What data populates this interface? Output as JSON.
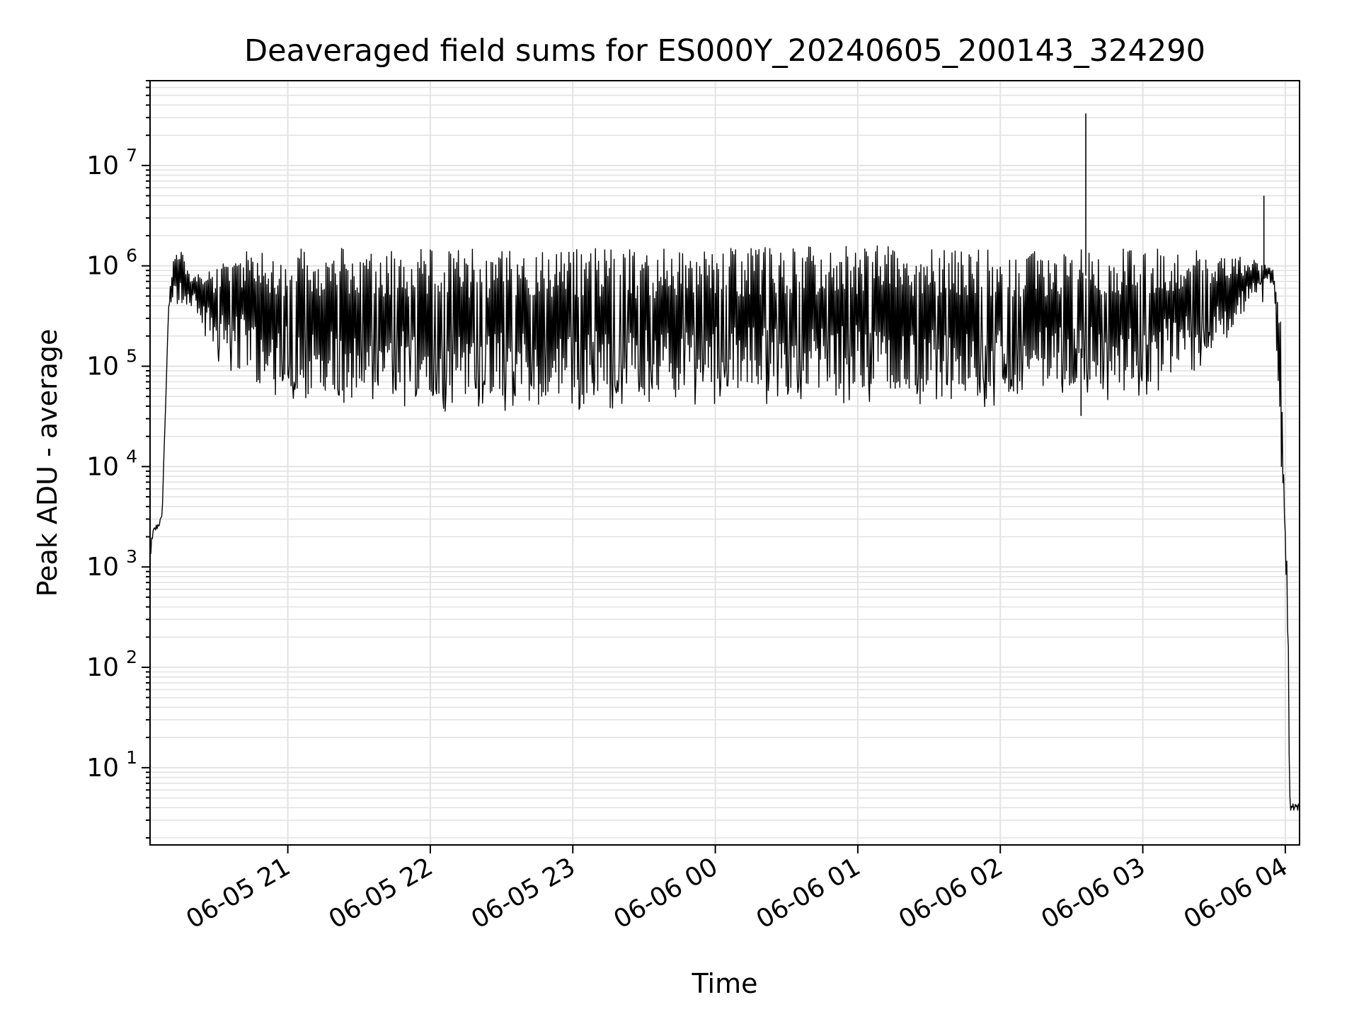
{
  "chart_data": {
    "type": "line",
    "title": "Deaveraged field sums for ES000Y_20240605_200143_324290",
    "xlabel": "Time",
    "ylabel": "Peak ADU - average",
    "yscale": "log",
    "ylim": [
      1.7,
      70000000
    ],
    "xlim": [
      "06-05 20:02",
      "06-06 04:06"
    ],
    "grid": true,
    "legend": "none",
    "line_color": "#000000",
    "x_ticks": [
      "06-05 21",
      "06-05 22",
      "06-05 23",
      "06-06 00",
      "06-06 01",
      "06-06 02",
      "06-06 03",
      "06-06 04"
    ],
    "y_ticks": [
      {
        "base": "10",
        "exp": "1",
        "value": 10
      },
      {
        "base": "10",
        "exp": "2",
        "value": 100
      },
      {
        "base": "10",
        "exp": "3",
        "value": 1000
      },
      {
        "base": "10",
        "exp": "4",
        "value": 10000
      },
      {
        "base": "10",
        "exp": "5",
        "value": 100000
      },
      {
        "base": "10",
        "exp": "6",
        "value": 1000000
      },
      {
        "base": "10",
        "exp": "7",
        "value": 10000000
      }
    ],
    "series": [
      {
        "envelope_upper": {
          "x": [
            "06-05 20:02",
            "06-05 20:07",
            "06-05 20:10",
            "06-05 20:12",
            "06-05 20:15",
            "06-05 20:20",
            "06-05 20:30",
            "06-05 20:40",
            "06-05 21:00",
            "06-05 22:00",
            "06-05 23:00",
            "06-06 00:00",
            "06-06 01:00",
            "06-06 02:00",
            "06-06 03:00",
            "06-06 03:30",
            "06-06 03:50",
            "06-06 03:55",
            "06-06 03:58",
            "06-06 04:00",
            "06-06 04:01",
            "06-06 04:02",
            "06-06 04:06"
          ],
          "y": [
            2000,
            3000,
            500000,
            1300000,
            1400000,
            800000,
            1000000,
            1500000,
            1500000,
            1500000,
            1500000,
            1500000,
            1600000,
            1500000,
            1500000,
            1400000,
            1100000,
            900000,
            300000,
            2000,
            1000,
            4,
            4
          ]
        },
        "envelope_lower": {
          "x": [
            "06-05 20:02",
            "06-05 20:10",
            "06-05 20:20",
            "06-05 20:30",
            "06-05 20:40",
            "06-05 21:00",
            "06-05 21:30",
            "06-05 22:00",
            "06-05 23:00",
            "06-06 00:00",
            "06-06 01:00",
            "06-06 02:00",
            "06-06 02:30",
            "06-06 03:00",
            "06-06 03:20",
            "06-06 03:35",
            "06-06 03:50",
            "06-06 03:55",
            "06-06 04:00",
            "06-06 04:02",
            "06-06 04:06"
          ],
          "y": [
            900,
            400000,
            400000,
            150000,
            100000,
            60000,
            55000,
            50000,
            50000,
            60000,
            60000,
            55000,
            60000,
            60000,
            120000,
            200000,
            600000,
            700000,
            2000,
            4,
            4
          ]
        },
        "spikes": [
          {
            "x": "06-06 02:36",
            "y": 33000000
          },
          {
            "x": "06-06 03:51",
            "y": 5000000
          },
          {
            "x": "06-06 02:34",
            "y": 32000
          }
        ]
      }
    ]
  }
}
